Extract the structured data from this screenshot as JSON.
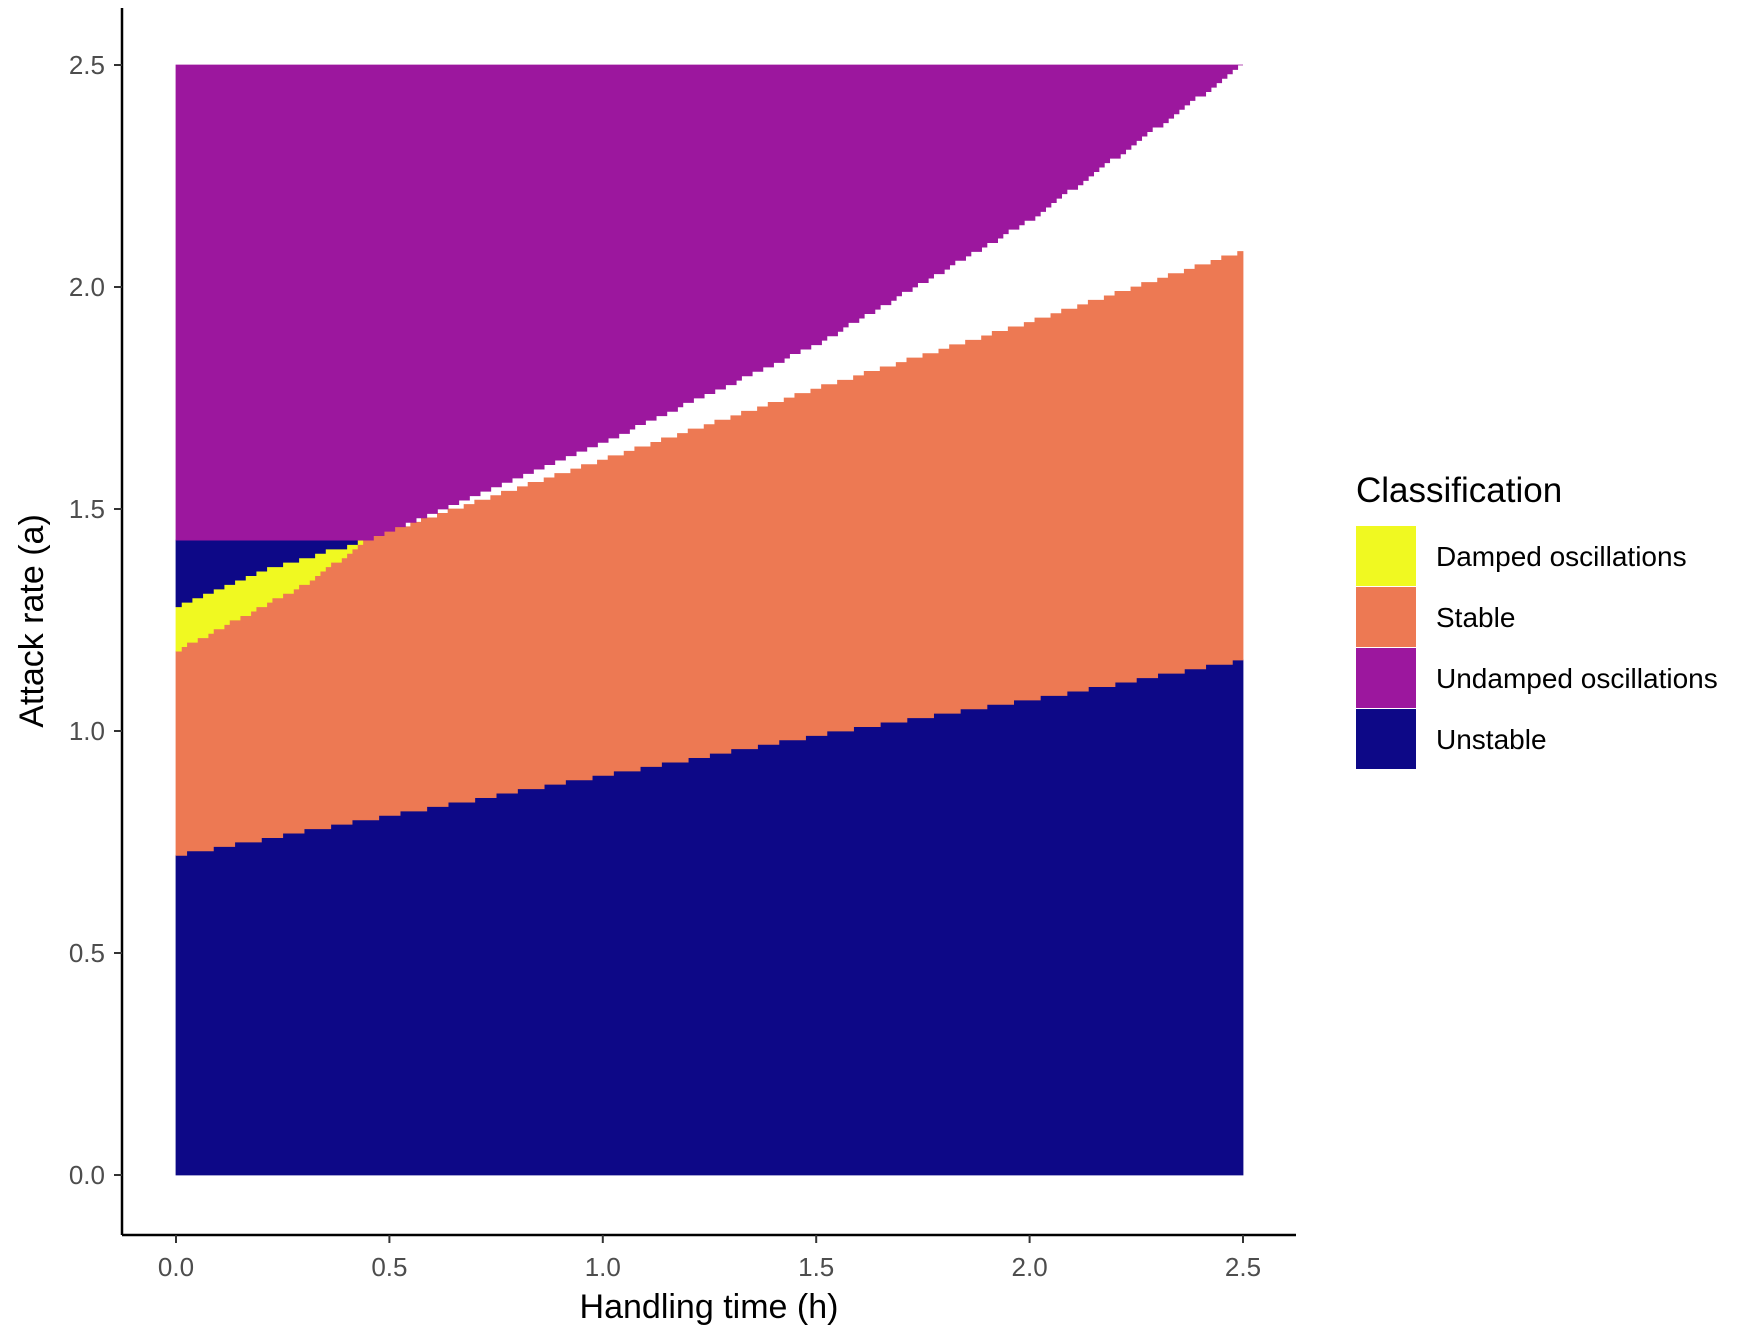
{
  "chart_data": {
    "type": "heatmap",
    "xlabel": "Handling time (h)",
    "ylabel": "Attack rate (a)",
    "xlim": [
      0,
      2.5
    ],
    "ylim": [
      0,
      2.5
    ],
    "x_ticks": [
      "0.0",
      "0.5",
      "1.0",
      "1.5",
      "2.0",
      "2.5"
    ],
    "y_ticks": [
      "0.0",
      "0.5",
      "1.0",
      "1.5",
      "2.0",
      "2.5"
    ],
    "grid": false,
    "legend": {
      "title": "Classification",
      "position": "right",
      "entries": [
        {
          "label": "Damped oscillations",
          "color": "#F0F921"
        },
        {
          "label": "Stable",
          "color": "#ED7953"
        },
        {
          "label": "Undamped oscillations",
          "color": "#9C179E"
        },
        {
          "label": "Unstable",
          "color": "#0D0887"
        }
      ]
    },
    "regions": [
      {
        "classification": "Unstable",
        "from_boundary": "bottom",
        "to_boundary": "stable_lower"
      },
      {
        "classification": "Stable",
        "from_boundary": "stable_lower",
        "to_boundary": "stable_upper"
      },
      {
        "classification": "Damped oscillations",
        "from_boundary": "stable_upper",
        "to_boundary": "damped_upper"
      },
      {
        "classification": "Unstable",
        "from_boundary": "damped_upper",
        "to_boundary": "undamped_lower"
      },
      {
        "classification": "Undamped oscillations",
        "from_boundary": "undamped_lower",
        "to_boundary": "top"
      }
    ],
    "boundaries": {
      "stable_lower": {
        "x": [
          0,
          0.5,
          1.0,
          1.5,
          2.0,
          2.5
        ],
        "y": [
          0.72,
          0.81,
          0.9,
          0.99,
          1.07,
          1.16
        ]
      },
      "stable_upper": {
        "x": [
          0,
          0.1,
          0.2,
          0.3,
          0.45,
          0.5,
          1.0,
          1.5,
          2.0,
          2.5
        ],
        "y": [
          1.18,
          1.23,
          1.28,
          1.33,
          1.43,
          1.45,
          1.61,
          1.77,
          1.92,
          2.08
        ]
      },
      "damped_upper": {
        "x": [
          0,
          0.1,
          0.2,
          0.3,
          0.45
        ],
        "y": [
          1.28,
          1.32,
          1.36,
          1.39,
          1.43
        ]
      },
      "undamped_lower": {
        "x": [
          0.45,
          0.5,
          0.75,
          1.0,
          1.5,
          2.0,
          2.5
        ],
        "y": [
          1.43,
          1.45,
          1.55,
          1.65,
          1.87,
          2.15,
          2.5
        ]
      }
    }
  }
}
